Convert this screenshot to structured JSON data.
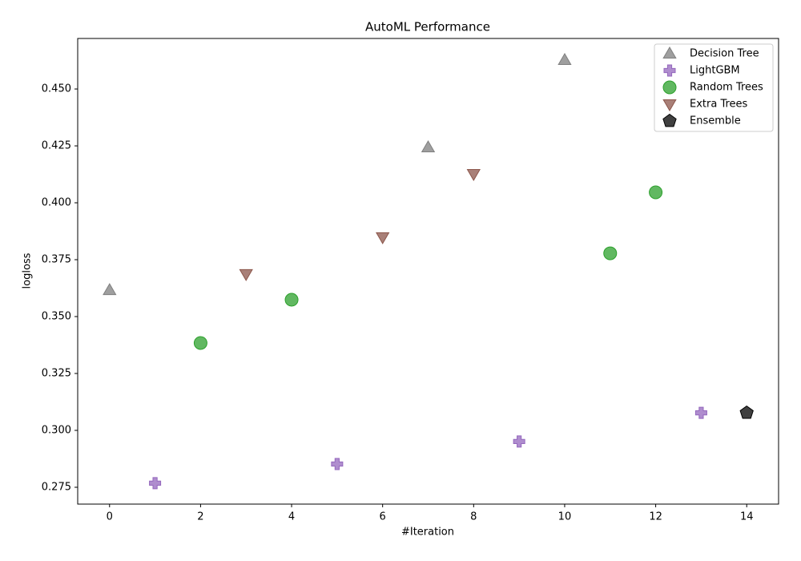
{
  "chart_data": {
    "type": "scatter",
    "title": "AutoML Performance",
    "x_label": "#Iteration",
    "y_label": "logloss",
    "xlim": [
      -0.7,
      14.7
    ],
    "xticks": [
      0,
      2,
      4,
      6,
      8,
      10,
      12,
      14
    ],
    "ylim": [
      0.2676,
      0.4722
    ],
    "yticks": [
      {
        "value": 0.275,
        "label": "0.275"
      },
      {
        "value": 0.3,
        "label": "0.300"
      },
      {
        "value": 0.325,
        "label": "0.325"
      },
      {
        "value": 0.35,
        "label": "0.350"
      },
      {
        "value": 0.375,
        "label": "0.375"
      },
      {
        "value": 0.4,
        "label": "0.400"
      },
      {
        "value": 0.425,
        "label": "0.425"
      },
      {
        "value": 0.45,
        "label": "0.450"
      }
    ],
    "grid": false,
    "legend": "upper-right",
    "series": [
      {
        "name": "Decision Tree",
        "color": "#7f7f7f",
        "marker": "triangle-up",
        "x": [
          0,
          7,
          10
        ],
        "values": [
          0.3616,
          0.4243,
          0.4627
        ]
      },
      {
        "name": "LightGBM",
        "color": "#9467bd",
        "marker": "plus",
        "x": [
          1,
          5,
          9,
          13
        ],
        "values": [
          0.2768,
          0.2852,
          0.2951,
          0.3077
        ]
      },
      {
        "name": "Random Trees",
        "color": "#2ca02c",
        "marker": "circle",
        "x": [
          2,
          4,
          11,
          12
        ],
        "values": [
          0.3384,
          0.3574,
          0.3778,
          0.4046
        ]
      },
      {
        "name": "Extra Trees",
        "color": "#8c564b",
        "marker": "triangle-down",
        "x": [
          3,
          6,
          8
        ],
        "values": [
          0.3687,
          0.3849,
          0.4127
        ]
      },
      {
        "name": "Ensemble",
        "color": "#000000",
        "marker": "pentagon",
        "x": [
          14
        ],
        "values": [
          0.3077
        ]
      }
    ]
  }
}
